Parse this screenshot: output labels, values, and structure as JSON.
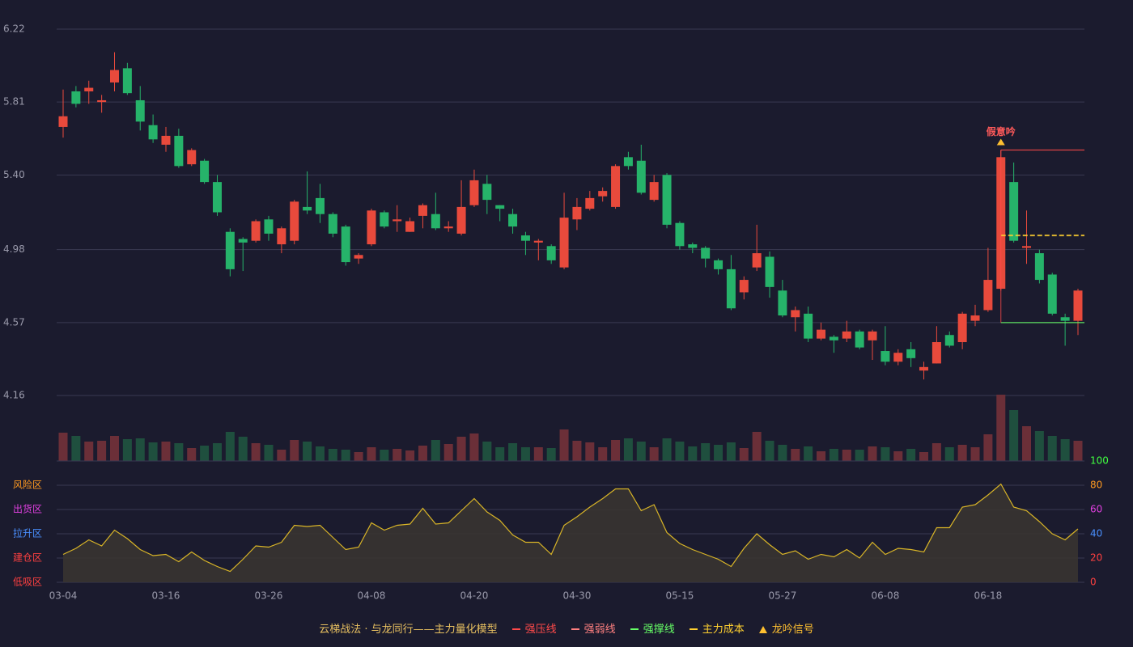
{
  "chart_data": {
    "type": "candlestick",
    "title": "云梯战法 · 与龙同行——主力量化模型",
    "categories": [
      "03-04",
      null,
      null,
      null,
      null,
      null,
      null,
      null,
      "03-16",
      null,
      null,
      null,
      null,
      null,
      null,
      null,
      "03-26",
      null,
      null,
      null,
      null,
      null,
      null,
      null,
      "04-08",
      null,
      null,
      null,
      null,
      null,
      null,
      null,
      "04-20",
      null,
      null,
      null,
      null,
      null,
      null,
      null,
      "04-30",
      null,
      null,
      null,
      null,
      null,
      null,
      null,
      "05-15",
      null,
      null,
      null,
      null,
      null,
      null,
      null,
      "05-27",
      null,
      null,
      null,
      null,
      null,
      null,
      null,
      "06-08",
      null,
      null,
      null,
      null,
      null,
      null,
      null,
      "06-18",
      null,
      null,
      null,
      null,
      null,
      null,
      null
    ],
    "open": [
      5.67,
      5.87,
      5.87,
      5.81,
      5.92,
      6.0,
      5.82,
      5.68,
      5.57,
      5.62,
      5.46,
      5.48,
      5.36,
      5.08,
      5.04,
      5.03,
      5.15,
      5.01,
      5.03,
      5.22,
      5.27,
      5.18,
      5.11,
      4.93,
      5.01,
      5.19,
      5.14,
      5.08,
      5.17,
      5.18,
      5.1,
      5.07,
      5.23,
      5.35,
      5.23,
      5.18,
      5.06,
      5.02,
      5.0,
      4.88,
      5.15,
      5.21,
      5.28,
      5.22,
      5.5,
      5.48,
      5.26,
      5.4,
      5.13,
      5.01,
      4.99,
      4.92,
      4.87,
      4.74,
      4.88,
      4.94,
      4.75,
      4.6,
      4.62,
      4.48,
      4.49,
      4.48,
      4.52,
      4.47,
      4.41,
      4.35,
      4.42,
      4.3,
      4.34,
      4.5,
      4.46,
      4.58,
      4.64,
      4.76,
      5.36,
      4.99,
      4.96,
      4.84,
      4.6,
      4.58
    ],
    "high": [
      5.88,
      5.9,
      5.93,
      5.85,
      6.09,
      6.03,
      5.9,
      5.74,
      5.67,
      5.66,
      5.55,
      5.49,
      5.4,
      5.1,
      5.05,
      5.15,
      5.17,
      5.11,
      5.26,
      5.42,
      5.35,
      5.19,
      5.12,
      4.96,
      5.21,
      5.2,
      5.23,
      5.16,
      5.24,
      5.3,
      5.14,
      5.37,
      5.43,
      5.4,
      5.23,
      5.21,
      5.08,
      5.04,
      5.01,
      5.3,
      5.27,
      5.31,
      5.33,
      5.46,
      5.53,
      5.57,
      5.4,
      5.41,
      5.14,
      5.02,
      5.0,
      4.93,
      4.95,
      4.83,
      5.12,
      4.97,
      4.81,
      4.66,
      4.66,
      4.57,
      4.5,
      4.58,
      4.53,
      4.53,
      4.55,
      4.42,
      4.46,
      4.35,
      4.55,
      4.52,
      4.63,
      4.67,
      4.99,
      5.54,
      5.47,
      5.2,
      4.98,
      4.85,
      4.62,
      4.76
    ],
    "low": [
      5.61,
      5.78,
      5.8,
      5.75,
      5.87,
      5.85,
      5.65,
      5.58,
      5.53,
      5.44,
      5.45,
      5.35,
      5.17,
      4.83,
      4.86,
      5.02,
      5.03,
      4.96,
      5.01,
      5.18,
      5.13,
      5.05,
      4.89,
      4.9,
      5.0,
      5.1,
      5.08,
      5.08,
      5.1,
      5.09,
      5.08,
      5.06,
      5.22,
      5.18,
      5.14,
      5.07,
      4.95,
      4.92,
      4.9,
      4.87,
      5.09,
      5.2,
      5.25,
      5.21,
      5.43,
      5.29,
      5.25,
      5.1,
      4.98,
      4.96,
      4.88,
      4.84,
      4.64,
      4.7,
      4.86,
      4.71,
      4.6,
      4.52,
      4.46,
      4.47,
      4.4,
      4.46,
      4.42,
      4.36,
      4.33,
      4.33,
      4.32,
      4.25,
      4.34,
      4.43,
      4.42,
      4.55,
      4.63,
      4.75,
      5.02,
      4.9,
      4.79,
      4.61,
      4.44,
      4.5
    ],
    "close": [
      5.73,
      5.8,
      5.89,
      5.82,
      5.99,
      5.86,
      5.7,
      5.6,
      5.62,
      5.45,
      5.54,
      5.36,
      5.19,
      4.87,
      5.02,
      5.14,
      5.07,
      5.1,
      5.25,
      5.2,
      5.18,
      5.07,
      4.91,
      4.95,
      5.2,
      5.11,
      5.15,
      5.14,
      5.23,
      5.1,
      5.11,
      5.22,
      5.37,
      5.26,
      5.21,
      5.11,
      5.03,
      5.03,
      4.92,
      5.16,
      5.22,
      5.27,
      5.31,
      5.45,
      5.45,
      5.3,
      5.36,
      5.12,
      5.0,
      4.99,
      4.93,
      4.87,
      4.65,
      4.81,
      4.96,
      4.77,
      4.61,
      4.64,
      4.48,
      4.53,
      4.47,
      4.52,
      4.43,
      4.52,
      4.35,
      4.4,
      4.37,
      4.32,
      4.46,
      4.44,
      4.62,
      4.61,
      4.81,
      5.5,
      5.03,
      5.0,
      4.81,
      4.62,
      4.58,
      4.75
    ],
    "volume": [
      35,
      31,
      24,
      25,
      31,
      27,
      28,
      23,
      24,
      22,
      16,
      19,
      22,
      36,
      30,
      22,
      20,
      14,
      26,
      24,
      18,
      15,
      14,
      11,
      17,
      14,
      15,
      13,
      19,
      26,
      21,
      30,
      34,
      24,
      17,
      22,
      17,
      17,
      16,
      39,
      25,
      23,
      17,
      26,
      28,
      24,
      17,
      28,
      24,
      18,
      22,
      20,
      23,
      16,
      36,
      25,
      20,
      15,
      18,
      12,
      15,
      14,
      14,
      18,
      17,
      12,
      15,
      11,
      22,
      17,
      20,
      17,
      33,
      82,
      63,
      43,
      37,
      31,
      27,
      25
    ],
    "up_color": "#e84a3c",
    "down_color": "#26b36a",
    "volume_up_color": "#6b2f38",
    "volume_down_color": "#1f4f3e",
    "ylim": [
      4.16,
      6.22
    ],
    "yticks": [
      6.22,
      5.81,
      {
        "value": 5.4,
        "label": "5.40"
      },
      4.98,
      4.57,
      4.16
    ],
    "grid": true,
    "annotation": {
      "text": "假意吟",
      "x": 73,
      "color": "#ff5a5a"
    },
    "series": [
      {
        "name": "强压线",
        "color": "#ff4a4a",
        "style": "solid",
        "value": 5.54,
        "start": 73
      },
      {
        "name": "强弱线",
        "color": "#ff8080",
        "style": "dashed",
        "value": null,
        "start": 73
      },
      {
        "name": "强撑线",
        "color": "#66ff66",
        "style": "solid",
        "value": 4.57,
        "start": 73
      },
      {
        "name": "主力成本",
        "color": "#ffd030",
        "style": "dashed",
        "value": 5.06,
        "start": 73
      },
      {
        "name": "龙吟信号",
        "color": "#ffc030",
        "style": "triangle",
        "value": null,
        "start": 73
      }
    ],
    "indicator": {
      "color": "#d9b527",
      "values": [
        23,
        28,
        35,
        30,
        43,
        36,
        27,
        22,
        23,
        17,
        25,
        18,
        13,
        9,
        19,
        30,
        29,
        33,
        47,
        46,
        47,
        37,
        27,
        29,
        49,
        43,
        47,
        48,
        61,
        48,
        49,
        59,
        69,
        58,
        51,
        39,
        33,
        33,
        23,
        47,
        54,
        62,
        69,
        77,
        77,
        59,
        64,
        41,
        32,
        27,
        23,
        19,
        13,
        28,
        40,
        31,
        23,
        26,
        19,
        23,
        21,
        27,
        20,
        33,
        23,
        28,
        27,
        25,
        45,
        45,
        62,
        64,
        72,
        81,
        62,
        59,
        50,
        40,
        35,
        44
      ],
      "ylim": [
        0,
        100
      ],
      "yticks": [
        0,
        20,
        40,
        60,
        80,
        100
      ],
      "ytick_colors": [
        "#ff4040",
        "#ff4040",
        "#4a90ff",
        "#e040e0",
        "#ff9a20",
        "#40ff40"
      ],
      "zones": [
        {
          "label": "风险区",
          "value": 80,
          "color": "#ff9a20"
        },
        {
          "label": "出货区",
          "value": 60,
          "color": "#e040e0"
        },
        {
          "label": "拉升区",
          "value": 40,
          "color": "#4a90ff"
        },
        {
          "label": "建仓区",
          "value": 20,
          "color": "#ff4040"
        },
        {
          "label": "低吸区",
          "value": 0,
          "color": "#ff4040"
        }
      ]
    }
  }
}
